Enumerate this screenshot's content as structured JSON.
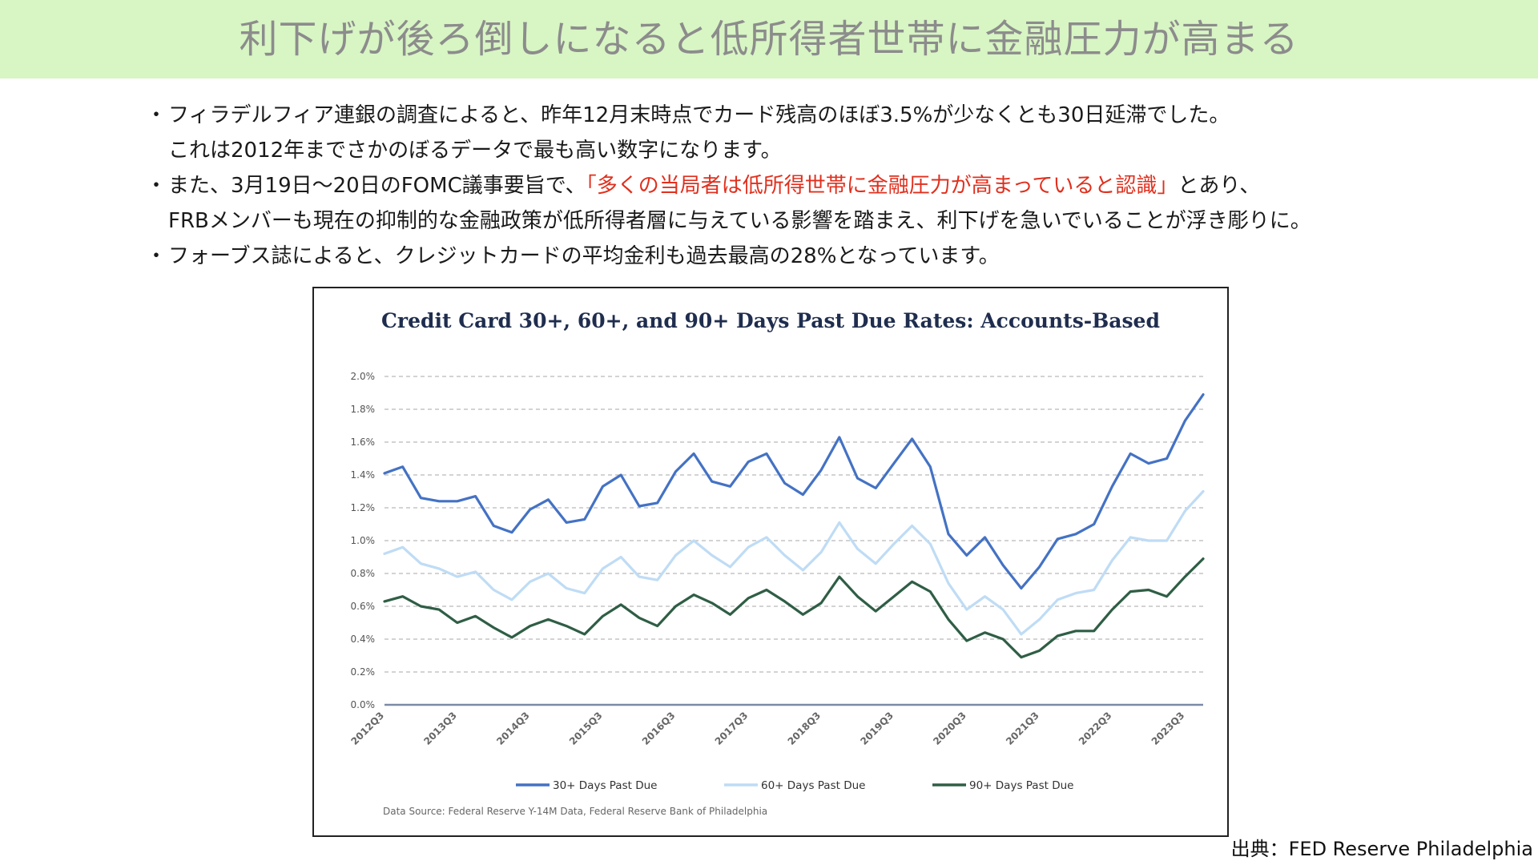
{
  "banner": {
    "title": "利下げが後ろ倒しになると低所得者世帯に金融圧力が高まる"
  },
  "bullets": [
    {
      "dot": "・",
      "line1": "フィラデルフィア連銀の調査によると、昨年12月末時点でカード残高のほぼ3.5%が少なくとも30日延滞でした。",
      "line2": "これは2012年までさかのぼるデータで最も高い数字になります。"
    },
    {
      "dot": "・",
      "line1_pre": "また、3月19日〜20日のFOMC議事要旨で、",
      "line1_red": "「多くの当局者は低所得世帯に金融圧力が高まっていると認識」",
      "line1_post": "とあり、",
      "line2": "FRBメンバーも現在の抑制的な金融政策が低所得者層に与えている影響を踏まえ、利下げを急いでいることが浮き彫りに。"
    },
    {
      "dot": "・",
      "line1": "フォーブス誌によると、クレジットカードの平均金利も過去最高の28%となっています。"
    }
  ],
  "credit": "出典：FED Reserve Philadelphia",
  "colors": {
    "banner_bg": "#d8f5c4",
    "highlight_red": "#e0301e"
  },
  "chart_data": {
    "type": "line",
    "title": "Credit Card 30+, 60+, and 90+ Days Past Due Rates: Accounts-Based",
    "source_note": "Data Source: Federal Reserve Y-14M Data, Federal Reserve Bank of Philadelphia",
    "ylim": [
      0,
      2.0
    ],
    "yticks": [
      "0.0%",
      "0.2%",
      "0.4%",
      "0.6%",
      "0.8%",
      "1.0%",
      "1.2%",
      "1.4%",
      "1.6%",
      "1.8%",
      "2.0%"
    ],
    "ytick_values": [
      0,
      0.2,
      0.4,
      0.6,
      0.8,
      1.0,
      1.2,
      1.4,
      1.6,
      1.8,
      2.0
    ],
    "x": [
      "2012Q3",
      "2012Q4",
      "2013Q1",
      "2013Q2",
      "2013Q3",
      "2013Q4",
      "2014Q1",
      "2014Q2",
      "2014Q3",
      "2014Q4",
      "2015Q1",
      "2015Q2",
      "2015Q3",
      "2015Q4",
      "2016Q1",
      "2016Q2",
      "2016Q3",
      "2016Q4",
      "2017Q1",
      "2017Q2",
      "2017Q3",
      "2017Q4",
      "2018Q1",
      "2018Q2",
      "2018Q3",
      "2018Q4",
      "2019Q1",
      "2019Q2",
      "2019Q3",
      "2019Q4",
      "2020Q1",
      "2020Q2",
      "2020Q3",
      "2020Q4",
      "2021Q1",
      "2021Q2",
      "2021Q3",
      "2021Q4",
      "2022Q1",
      "2022Q2",
      "2022Q3",
      "2022Q4",
      "2023Q1",
      "2023Q2",
      "2023Q3",
      "2023Q4"
    ],
    "xtick_labels": [
      "2012Q3",
      "2013Q3",
      "2014Q3",
      "2015Q3",
      "2016Q3",
      "2017Q3",
      "2018Q3",
      "2019Q3",
      "2020Q3",
      "2021Q3",
      "2022Q3",
      "2023Q3"
    ],
    "grid": true,
    "legend_position": "bottom",
    "series": [
      {
        "name": "30+ Days Past Due",
        "color": "#4472c4",
        "values": [
          1.41,
          1.45,
          1.26,
          1.24,
          1.24,
          1.27,
          1.09,
          1.05,
          1.19,
          1.25,
          1.11,
          1.13,
          1.33,
          1.4,
          1.21,
          1.23,
          1.42,
          1.53,
          1.36,
          1.33,
          1.48,
          1.53,
          1.35,
          1.28,
          1.43,
          1.63,
          1.38,
          1.32,
          1.47,
          1.62,
          1.45,
          1.04,
          0.91,
          1.02,
          0.85,
          0.71,
          0.84,
          1.01,
          1.04,
          1.1,
          1.33,
          1.53,
          1.47,
          1.5,
          1.73,
          1.89
        ]
      },
      {
        "name": "60+ Days Past Due",
        "color": "#bfdcf5",
        "values": [
          0.92,
          0.96,
          0.86,
          0.83,
          0.78,
          0.81,
          0.7,
          0.64,
          0.75,
          0.8,
          0.71,
          0.68,
          0.83,
          0.9,
          0.78,
          0.76,
          0.91,
          1.0,
          0.91,
          0.84,
          0.96,
          1.02,
          0.91,
          0.82,
          0.93,
          1.11,
          0.95,
          0.86,
          0.98,
          1.09,
          0.98,
          0.74,
          0.58,
          0.66,
          0.58,
          0.43,
          0.52,
          0.64,
          0.68,
          0.7,
          0.88,
          1.02,
          1.0,
          1.0,
          1.18,
          1.3
        ]
      },
      {
        "name": "90+ Days Past Due",
        "color": "#2f5e45",
        "values": [
          0.63,
          0.66,
          0.6,
          0.58,
          0.5,
          0.54,
          0.47,
          0.41,
          0.48,
          0.52,
          0.48,
          0.43,
          0.54,
          0.61,
          0.53,
          0.48,
          0.6,
          0.67,
          0.62,
          0.55,
          0.65,
          0.7,
          0.63,
          0.55,
          0.62,
          0.78,
          0.66,
          0.57,
          0.66,
          0.75,
          0.69,
          0.52,
          0.39,
          0.44,
          0.4,
          0.29,
          0.33,
          0.42,
          0.45,
          0.45,
          0.58,
          0.69,
          0.7,
          0.66,
          0.78,
          0.89
        ]
      }
    ]
  }
}
